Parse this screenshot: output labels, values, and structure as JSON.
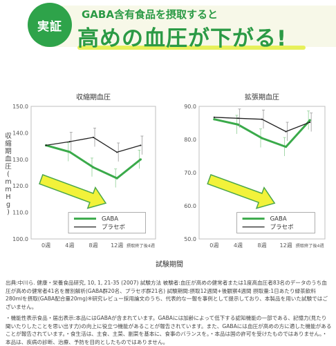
{
  "header": {
    "badge": "実証",
    "subtitle": "GABA含有食品を摂取すると",
    "headline": "高めの血圧が下がる!"
  },
  "colors": {
    "gaba": "#3aaa4a",
    "placebo": "#222222",
    "arrow_fill": "#f2f23a",
    "arrow_stroke": "#4aa64a",
    "accent": "#2b9a45"
  },
  "chart_data": [
    {
      "type": "line",
      "title": "収縮期血圧",
      "ylabel": "収縮期血圧(mmHg)",
      "xlabel": "試験期間",
      "categories": [
        "0週",
        "4週",
        "8週",
        "12週",
        "摂取終了後4週"
      ],
      "ylim": [
        100,
        150
      ],
      "yticks": [
        "150.0",
        "140.0",
        "130.0",
        "120.0",
        "110.0",
        "100.0"
      ],
      "series": [
        {
          "name": "GABA",
          "values": [
            135.3,
            132.8,
            127.0,
            122.9,
            130.0
          ]
        },
        {
          "name": "プラセボ",
          "values": [
            135.3,
            136.7,
            138.3,
            132.7,
            135.3
          ]
        }
      ],
      "legend": {
        "position": "bottom-right"
      }
    },
    {
      "type": "line",
      "title": "拡張期血圧",
      "ylabel": "",
      "xlabel": "試験期間",
      "categories": [
        "0週",
        "4週",
        "8週",
        "12週",
        "摂取終了後4週"
      ],
      "ylim": [
        50,
        90
      ],
      "yticks": [
        "90.0",
        "80.0",
        "70.0",
        "60.0",
        "50.0"
      ],
      "series": [
        {
          "name": "GABA",
          "values": [
            86.1,
            84.5,
            80.4,
            77.8,
            85.8
          ]
        },
        {
          "name": "プラセボ",
          "values": [
            86.7,
            86.4,
            86.1,
            82.4,
            85.2
          ]
        }
      ],
      "legend": {
        "position": "bottom-right"
      }
    }
  ],
  "notes": {
    "p1": "出典:中川ら. 健康・栄養食品研究, 10, 1, 21-35 (2007) 試験方法 被験者:血圧が高めの健常者または1度高血圧者83名のデータのうち血圧が高めの健常者41名を層別解析(GABA群20名、プラセボ群21名) 試験期間:摂取12週間+後観察4週間 摂取量:1日あたり緑茶飲料280mlを摂取(GABA配合量20mg)※研究レビュー採用論文のうち、代表的な一報を事例として提示しており、本製品を用いた試験ではございません。",
    "p2": "・機能性表示食品・届出表示:本品にはGABAが含まれています。GABAには加齢によって低下する認知機能の一部である、記憶力(見たり聞いたりしたことを思い出す力)の向上に役立つ機能があることが報告されています。また、GABAには血圧が高めの方に適した機能があることが報告されています。・食生活は、主食、主菜、副菜を基本に、食事のバランスを。・本品は国の許可を受けたものではありません。・本品は、疾病の診断、治療、予防を目的としたものではありません。"
  }
}
